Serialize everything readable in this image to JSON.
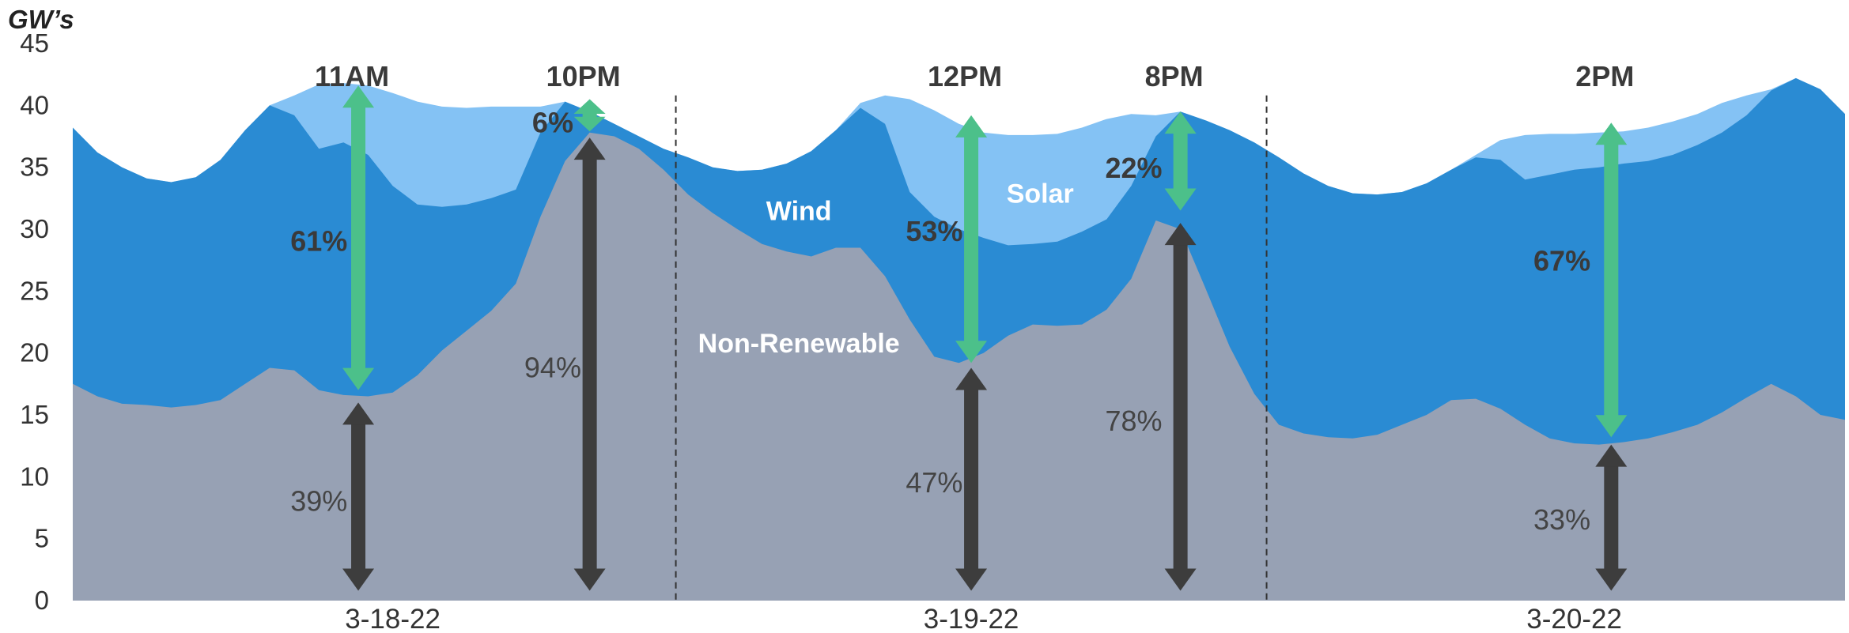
{
  "chart_data": {
    "type": "area",
    "stacked": true,
    "ylabel": "GW’s",
    "ylim": [
      0,
      45
    ],
    "yticks": [
      0,
      5,
      10,
      15,
      20,
      25,
      30,
      35,
      40,
      45
    ],
    "x_unit": "hour",
    "x_range": [
      0,
      72
    ],
    "date_labels": [
      {
        "x": 13,
        "label": "3-18-22"
      },
      {
        "x": 36.5,
        "label": "3-19-22"
      },
      {
        "x": 61,
        "label": "3-20-22"
      }
    ],
    "day_dividers": [
      24.5,
      48.5
    ],
    "x": [
      0,
      1,
      2,
      3,
      4,
      5,
      6,
      7,
      8,
      9,
      10,
      11,
      12,
      13,
      14,
      15,
      16,
      17,
      18,
      19,
      20,
      21,
      22,
      23,
      24,
      25,
      26,
      27,
      28,
      29,
      30,
      31,
      32,
      33,
      34,
      35,
      36,
      37,
      38,
      39,
      40,
      41,
      42,
      43,
      44,
      45,
      46,
      47,
      48,
      49,
      50,
      51,
      52,
      53,
      54,
      55,
      56,
      57,
      58,
      59,
      60,
      61,
      62,
      63,
      64,
      65,
      66,
      67,
      68,
      69,
      70,
      71,
      72
    ],
    "series": [
      {
        "name": "Non-Renewable",
        "color": "#97a1b4",
        "values": [
          17.5,
          16.5,
          15.9,
          15.8,
          15.6,
          15.8,
          16.2,
          17.5,
          18.8,
          18.6,
          17.0,
          16.6,
          16.5,
          16.8,
          18.2,
          20.2,
          21.8,
          23.4,
          25.6,
          31.0,
          35.5,
          37.8,
          37.5,
          36.5,
          34.8,
          32.8,
          31.3,
          30.0,
          28.8,
          28.2,
          27.8,
          28.5,
          28.5,
          26.2,
          22.7,
          19.7,
          19.2,
          20.0,
          21.4,
          22.3,
          22.2,
          22.3,
          23.5,
          26.0,
          30.7,
          30.0,
          25.3,
          20.5,
          16.7,
          14.2,
          13.5,
          13.2,
          13.1,
          13.4,
          14.2,
          15.0,
          16.2,
          16.3,
          15.5,
          14.2,
          13.1,
          12.7,
          12.6,
          12.8,
          13.1,
          13.6,
          14.2,
          15.2,
          16.4,
          17.5,
          16.5,
          15.0,
          14.6
        ]
      },
      {
        "name": "Wind",
        "color": "#2a8bd3",
        "values": [
          38.2,
          36.2,
          35.0,
          34.1,
          33.8,
          34.2,
          35.6,
          38.0,
          40.0,
          39.2,
          36.5,
          37.0,
          36.0,
          33.5,
          32.0,
          31.8,
          32.0,
          32.5,
          33.2,
          37.8,
          40.3,
          39.5,
          38.5,
          37.5,
          36.5,
          35.8,
          35.0,
          34.7,
          34.8,
          35.3,
          36.3,
          38.0,
          39.8,
          38.5,
          33.0,
          31.0,
          30.0,
          29.3,
          28.7,
          28.8,
          29.0,
          29.8,
          30.8,
          33.5,
          37.5,
          39.5,
          38.8,
          38.0,
          37.0,
          35.8,
          34.5,
          33.5,
          32.9,
          32.8,
          33.0,
          33.7,
          34.8,
          35.8,
          35.6,
          34.0,
          34.4,
          34.8,
          35.0,
          35.3,
          35.5,
          36.0,
          36.8,
          37.8,
          39.2,
          41.2,
          42.2,
          41.3,
          39.3
        ]
      },
      {
        "name": "Solar",
        "color": "#84c2f4",
        "values": [
          38.2,
          36.2,
          35.0,
          34.1,
          33.8,
          34.2,
          35.6,
          38.0,
          40.0,
          40.8,
          41.7,
          41.8,
          41.6,
          41.0,
          40.3,
          39.9,
          39.8,
          39.9,
          39.9,
          39.9,
          40.3,
          39.5,
          38.5,
          37.5,
          36.5,
          35.8,
          35.0,
          34.7,
          34.8,
          35.3,
          36.3,
          38.0,
          40.2,
          40.8,
          40.5,
          39.6,
          38.5,
          37.8,
          37.6,
          37.6,
          37.7,
          38.2,
          38.9,
          39.3,
          39.2,
          39.5,
          38.8,
          38.0,
          37.0,
          35.8,
          34.5,
          33.5,
          32.9,
          32.8,
          33.0,
          33.7,
          34.8,
          36.0,
          37.2,
          37.6,
          37.7,
          37.7,
          37.8,
          37.9,
          38.2,
          38.7,
          39.3,
          40.2,
          40.8,
          41.3,
          42.2,
          41.3,
          39.3
        ]
      }
    ],
    "series_labels": [
      {
        "text": "Wind",
        "x": 29.5,
        "y": 31.5
      },
      {
        "text": "Solar",
        "x": 39.3,
        "y": 32.9
      },
      {
        "text": "Non-Renewable",
        "x": 29.5,
        "y": 20.8
      }
    ],
    "annotations": [
      {
        "time": "11AM",
        "x": 11.6,
        "renewable_pct": "61%",
        "renewable_range": [
          17.0,
          41.6
        ],
        "nonrenewable_pct": "39%",
        "nonrenewable_range": [
          0.8,
          16.0
        ],
        "green_label_at": [
          10,
          29.0
        ],
        "dark_label_at": [
          10,
          8.0
        ]
      },
      {
        "time": "10PM",
        "x": 21.0,
        "renewable_pct": "6%",
        "renewable_range": [
          37.9,
          40.5
        ],
        "nonrenewable_pct": "94%",
        "nonrenewable_range": [
          0.8,
          37.4
        ],
        "green_label_at": [
          19.5,
          38.6
        ],
        "dark_label_at": [
          19.5,
          18.8
        ]
      },
      {
        "time": "12PM",
        "x": 36.5,
        "renewable_pct": "53%",
        "renewable_range": [
          19.2,
          39.2
        ],
        "nonrenewable_pct": "47%",
        "nonrenewable_range": [
          0.8,
          18.8
        ],
        "green_label_at": [
          35,
          29.8
        ],
        "dark_label_at": [
          35,
          9.5
        ]
      },
      {
        "time": "8PM",
        "x": 45.0,
        "renewable_pct": "22%",
        "renewable_range": [
          31.5,
          39.5
        ],
        "nonrenewable_pct": "78%",
        "nonrenewable_range": [
          0.8,
          30.5
        ],
        "green_label_at": [
          43.1,
          34.9
        ],
        "dark_label_at": [
          43.1,
          14.5
        ]
      },
      {
        "time": "2PM",
        "x": 62.5,
        "renewable_pct": "67%",
        "renewable_range": [
          13.2,
          38.6
        ],
        "nonrenewable_pct": "33%",
        "nonrenewable_range": [
          0.8,
          12.6
        ],
        "green_label_at": [
          60.5,
          27.4
        ],
        "dark_label_at": [
          60.5,
          6.5
        ]
      }
    ],
    "arrow_colors": {
      "renewable": "#4cc08a",
      "nonrenewable": "#3d3d3d"
    }
  }
}
